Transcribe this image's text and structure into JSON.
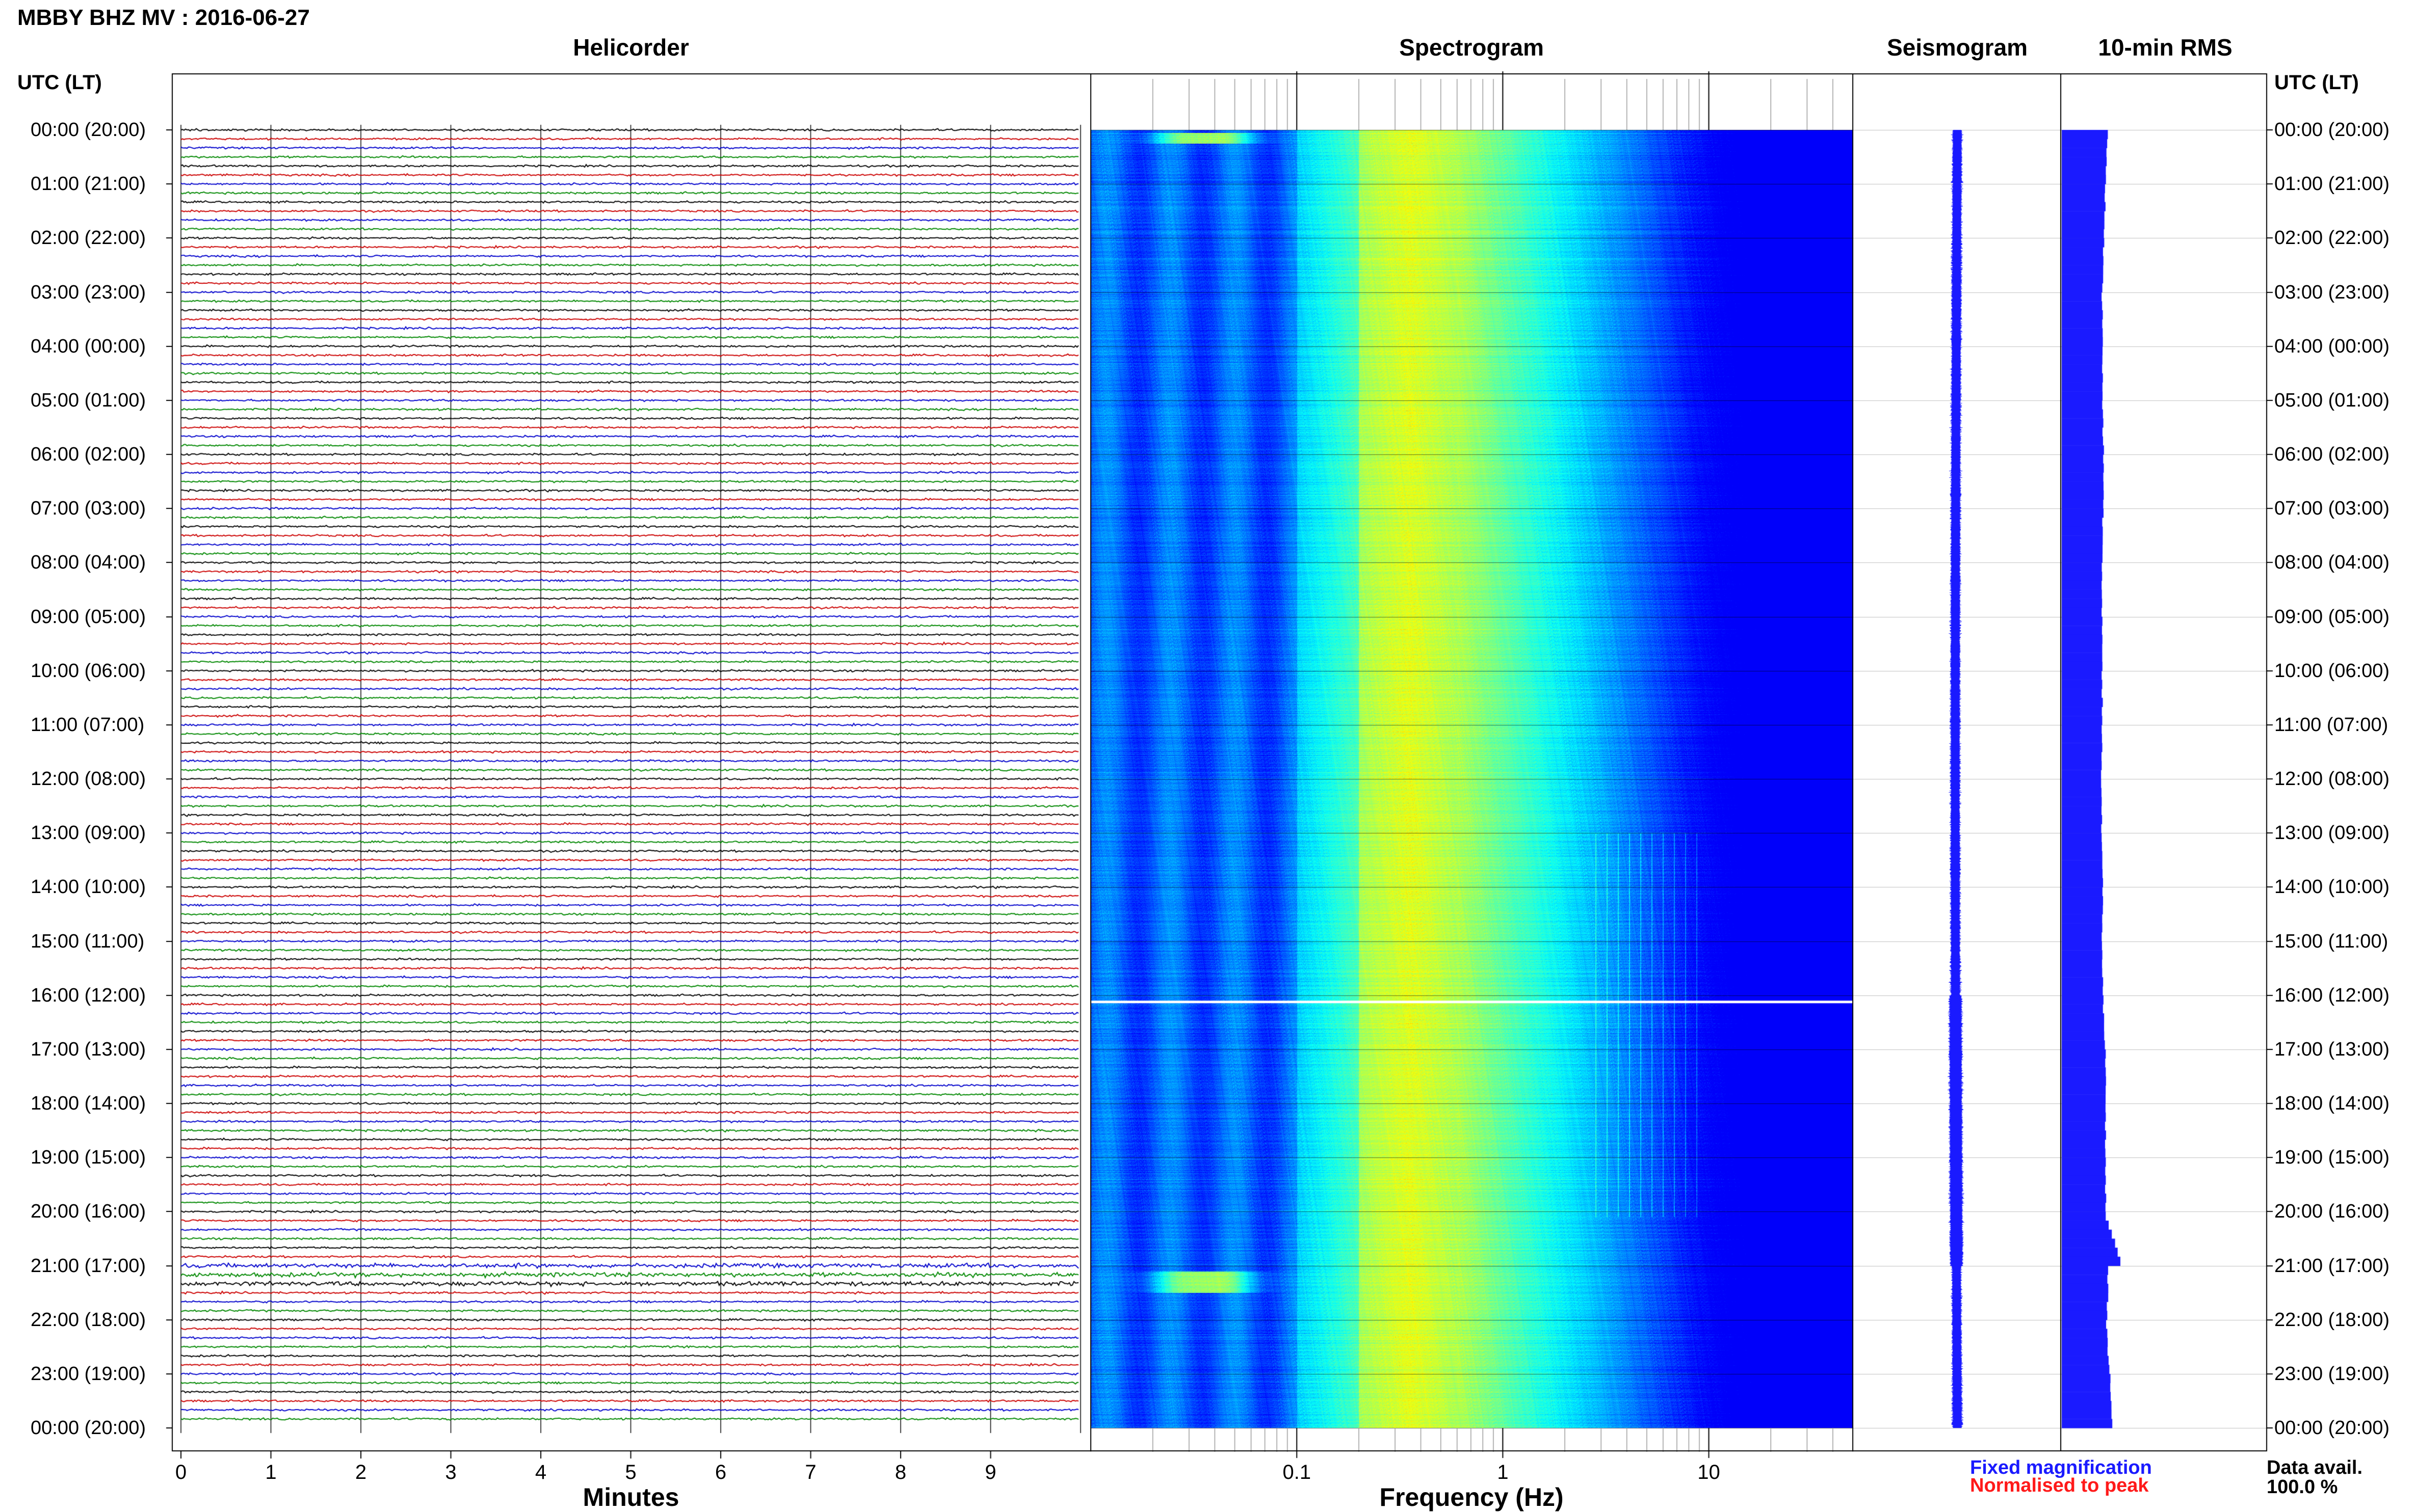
{
  "title": "MBBY BHZ MV : 2016-06-27",
  "panels": {
    "helicorder": "Helicorder",
    "spectrogram": "Spectrogram",
    "seismogram": "Seismogram",
    "rms": "10-min RMS"
  },
  "utc_header_left": "UTC (LT)",
  "utc_header_right": "UTC (LT)",
  "time_labels": [
    "00:00 (20:00)",
    "01:00 (21:00)",
    "02:00 (22:00)",
    "03:00 (23:00)",
    "04:00 (00:00)",
    "05:00 (01:00)",
    "06:00 (02:00)",
    "07:00 (03:00)",
    "08:00 (04:00)",
    "09:00 (05:00)",
    "10:00 (06:00)",
    "11:00 (07:00)",
    "12:00 (08:00)",
    "13:00 (09:00)",
    "14:00 (10:00)",
    "15:00 (11:00)",
    "16:00 (12:00)",
    "17:00 (13:00)",
    "18:00 (14:00)",
    "19:00 (15:00)",
    "20:00 (16:00)",
    "21:00 (17:00)",
    "22:00 (18:00)",
    "23:00 (19:00)",
    "00:00 (20:00)"
  ],
  "helicorder": {
    "xlabel": "Minutes",
    "ticks": [
      "0",
      "1",
      "2",
      "3",
      "4",
      "5",
      "6",
      "7",
      "8",
      "9"
    ],
    "trace_colors": [
      "#000000",
      "#cc0000",
      "#0000cc",
      "#008800"
    ]
  },
  "spectrogram": {
    "xlabel": "Frequency (Hz)",
    "ticks": [
      "0.1",
      "1",
      "10"
    ],
    "x_scale": "log",
    "xlim": [
      0.01,
      50
    ]
  },
  "legend": {
    "fixed": "Fixed magnification",
    "normalised": "Normalised to peak",
    "fixed_color": "#1a1aff",
    "normalised_color": "#ff1a1a"
  },
  "availability": {
    "label": "Data avail.",
    "value": "100.0 %"
  },
  "chart_data": {
    "type": "heatmap",
    "title": "MBBY BHZ MV : 2016-06-27",
    "xlabel": "Frequency (Hz)",
    "x_scale": "log",
    "ylabel": "UTC (LT)",
    "ylim": [
      "00:00",
      "24:00"
    ],
    "rms_series": {
      "name": "10-min RMS",
      "x_hours": [
        0,
        1,
        2,
        3,
        4,
        5,
        6,
        7,
        8,
        9,
        10,
        11,
        12,
        13,
        14,
        15,
        16,
        17,
        18,
        19,
        20,
        20.83,
        21,
        22,
        23,
        23.83
      ],
      "values": [
        1.0,
        0.95,
        0.92,
        0.88,
        0.9,
        0.88,
        0.92,
        0.9,
        0.88,
        0.88,
        0.88,
        0.88,
        0.86,
        0.88,
        0.9,
        0.88,
        0.9,
        0.95,
        0.96,
        0.95,
        0.96,
        1.28,
        1.02,
        0.98,
        1.05,
        1.1
      ]
    }
  }
}
